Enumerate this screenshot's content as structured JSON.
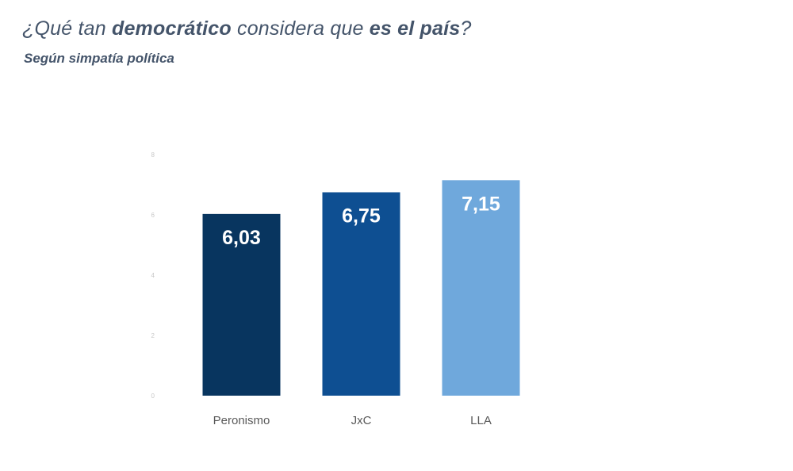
{
  "header": {
    "title_parts": [
      {
        "text": "¿Qué tan ",
        "bold": false
      },
      {
        "text": "democrático",
        "bold": true
      },
      {
        "text": " considera que ",
        "bold": false
      },
      {
        "text": "es el país",
        "bold": true
      },
      {
        "text": "?",
        "bold": false
      }
    ],
    "subtitle": "Según simpatía política"
  },
  "chart_data": {
    "type": "bar",
    "title": "¿Qué tan democrático considera que es el país?",
    "subtitle": "Según simpatía política",
    "categories": [
      "Peronismo",
      "JxC",
      "LLA"
    ],
    "values": [
      6.03,
      6.75,
      7.15
    ],
    "value_labels": [
      "6,03",
      "6,75",
      "7,15"
    ],
    "colors": [
      "#08355f",
      "#0e4f92",
      "#6fa8dc"
    ],
    "ylim": [
      0,
      8
    ],
    "yticks": [
      "0",
      "2",
      "4",
      "6",
      "8"
    ],
    "xlabel": "",
    "ylabel": "",
    "grid": false,
    "legend": "none"
  }
}
